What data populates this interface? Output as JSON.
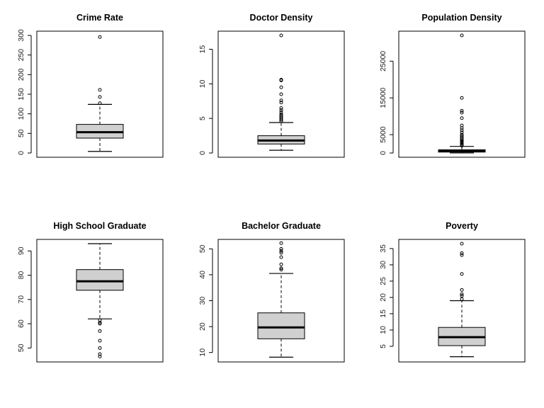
{
  "chart_data": [
    {
      "type": "box",
      "title": "Crime Rate",
      "ylim": [
        0,
        300
      ],
      "yticks": [
        0,
        50,
        100,
        150,
        200,
        250,
        300
      ],
      "box": {
        "min": 4,
        "q1": 38,
        "median": 53,
        "q3": 73,
        "max": 124
      },
      "outliers": [
        127,
        143,
        161,
        296
      ],
      "grid": false
    },
    {
      "type": "box",
      "title": "Doctor Density",
      "ylim": [
        0,
        17
      ],
      "yticks": [
        0,
        5,
        10,
        15
      ],
      "box": {
        "min": 0.4,
        "q1": 1.3,
        "median": 1.8,
        "q3": 2.5,
        "max": 4.4
      },
      "outliers": [
        4.6,
        4.8,
        5.0,
        5.2,
        5.4,
        5.6,
        5.9,
        6.2,
        6.5,
        7.3,
        7.6,
        8.5,
        9.5,
        10.5,
        10.6,
        17.0
      ],
      "grid": false
    },
    {
      "type": "box",
      "title": "Population Density",
      "ylim": [
        0,
        32000
      ],
      "yticks": [
        0,
        5000,
        15000,
        25000
      ],
      "box": {
        "min": 20,
        "q1": 250,
        "median": 500,
        "q3": 900,
        "max": 1800
      },
      "outliers": [
        2000,
        2300,
        2600,
        2900,
        3200,
        3500,
        3800,
        4200,
        4600,
        5000,
        5600,
        6200,
        6800,
        7500,
        9500,
        11000,
        11500,
        15000,
        32000
      ],
      "grid": false
    },
    {
      "type": "box",
      "title": "High School Graduate",
      "ylim": [
        46,
        93
      ],
      "yticks": [
        50,
        60,
        70,
        80,
        90
      ],
      "box": {
        "min": 62,
        "q1": 73.8,
        "median": 77.5,
        "q3": 82.3,
        "max": 93
      },
      "outliers": [
        61.5,
        60.5,
        60,
        57,
        53,
        50,
        47.5,
        46.5
      ],
      "grid": false
    },
    {
      "type": "box",
      "title": "Bachelor Graduate",
      "ylim": [
        8,
        52
      ],
      "yticks": [
        10,
        20,
        30,
        40,
        50
      ],
      "box": {
        "min": 8.2,
        "q1": 15.3,
        "median": 19.7,
        "q3": 25.3,
        "max": 40.5
      },
      "outliers": [
        42,
        42.5,
        44,
        46.8,
        48.5,
        49.2,
        50,
        52.2
      ],
      "grid": false
    },
    {
      "type": "box",
      "title": "Poverty",
      "ylim": [
        1.5,
        36.5
      ],
      "yticks": [
        5,
        10,
        15,
        20,
        25,
        30,
        35
      ],
      "box": {
        "min": 1.8,
        "q1": 5.2,
        "median": 7.8,
        "q3": 10.8,
        "max": 19.0
      },
      "outliers": [
        19.5,
        20.5,
        21,
        22.3,
        27.2,
        33,
        33.6,
        36.5
      ],
      "grid": false
    }
  ]
}
